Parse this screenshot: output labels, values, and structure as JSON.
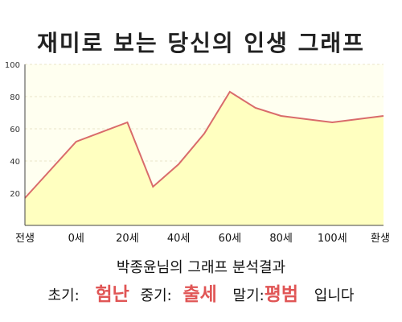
{
  "header": {
    "title": "재미로 보는 당신의 인생 그래프"
  },
  "chart_data": {
    "type": "area",
    "x_categories": [
      "전생",
      "0세",
      "20세",
      "40세",
      "60세",
      "80세",
      "100세",
      "환생"
    ],
    "x": [
      0,
      1,
      2,
      2.5,
      3,
      3.5,
      4,
      4.5,
      5,
      6,
      7
    ],
    "values": [
      17,
      52,
      64,
      24,
      38,
      57,
      83,
      73,
      68,
      64,
      68
    ],
    "yticks": [
      20,
      40,
      60,
      80,
      100
    ],
    "ylim": [
      0,
      100
    ],
    "grid": true,
    "colors": {
      "fill": "#ffffc0",
      "line": "#d96b6b",
      "background": "#fffff0",
      "grid": "#e8e6c8"
    }
  },
  "summary": {
    "text": "박종윤님의 그래프 분석결과"
  },
  "verdict": {
    "early_label": "초기:",
    "early_value": "험난",
    "mid_label": "중기:",
    "mid_value": "출세",
    "late_label": "말기:",
    "late_value": "평범",
    "ending": "입니다"
  }
}
